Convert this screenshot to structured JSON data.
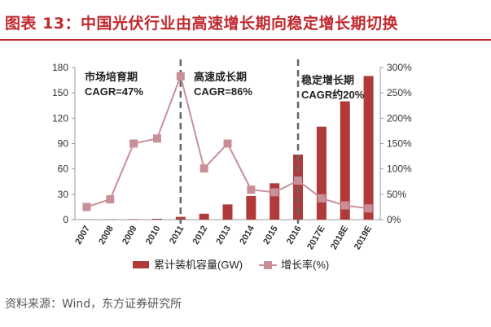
{
  "title": "图表 13：中国光伏行业由高速增长期向稳定增长期切换",
  "source": "资料来源：Wind，东方证券研究所",
  "chart_data": {
    "type": "bar+line",
    "categories": [
      "2007",
      "2008",
      "2009",
      "2010",
      "2011",
      "2012",
      "2013",
      "2014",
      "2015",
      "2016",
      "2017E",
      "2018E",
      "2019E"
    ],
    "series": [
      {
        "name": "累计装机容量(GW)",
        "type": "bar",
        "axis": "left",
        "color": "#b03a3a",
        "values": [
          0.1,
          0.3,
          0.5,
          1,
          3.3,
          7,
          18,
          28,
          43,
          77,
          110,
          140,
          170
        ]
      },
      {
        "name": "增长率(%)",
        "type": "line",
        "axis": "right",
        "color": "#c98f98",
        "values": [
          25,
          40,
          150,
          160,
          283,
          101,
          150,
          59,
          54,
          77,
          42,
          28,
          22
        ]
      }
    ],
    "y_left": {
      "lim": [
        0,
        180
      ],
      "ticks": [
        "0",
        "30",
        "60",
        "90",
        "120",
        "150",
        "180"
      ]
    },
    "y_right": {
      "lim": [
        0,
        300
      ],
      "ticks": [
        "0%",
        "50%",
        "100%",
        "150%",
        "200%",
        "250%",
        "300%"
      ]
    },
    "dividers_at": [
      "2011",
      "2016"
    ],
    "annotations": [
      {
        "lines": [
          "市场培育期",
          "CAGR=47%"
        ]
      },
      {
        "lines": [
          "高速成长期",
          "CAGR=86%"
        ]
      },
      {
        "lines": [
          "稳定增长期",
          "CAGR约20%"
        ]
      }
    ],
    "legend_position": "bottom",
    "grid": false
  }
}
